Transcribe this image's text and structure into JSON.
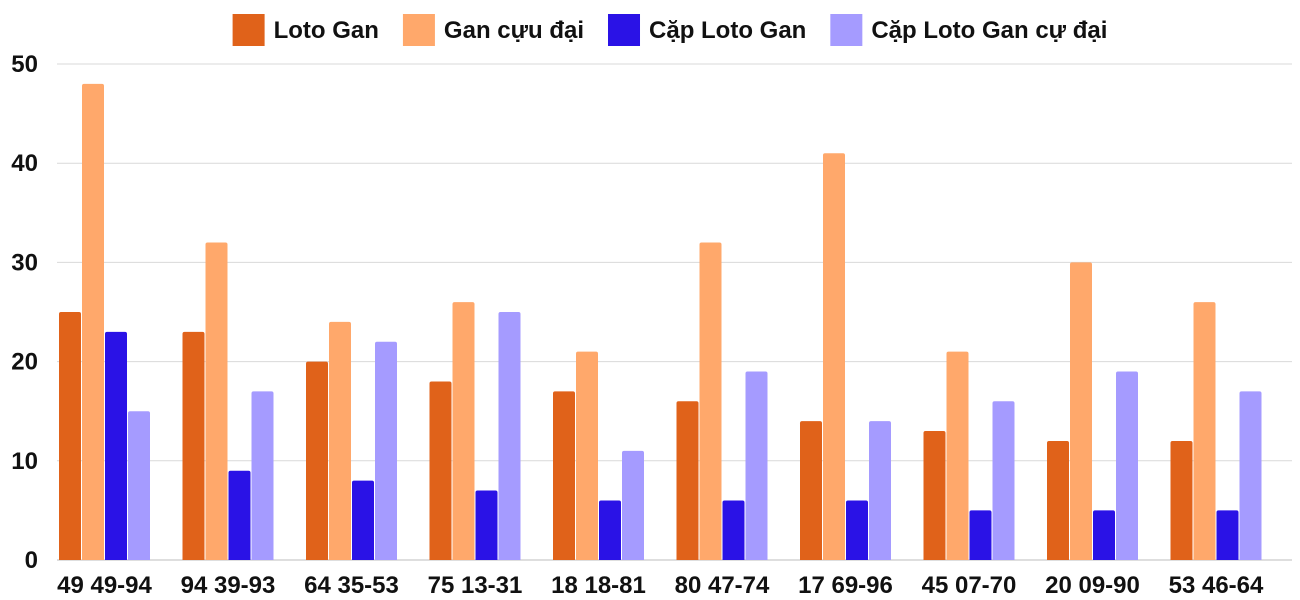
{
  "chart_data": {
    "type": "bar",
    "title": "",
    "xlabel": "",
    "ylabel": "",
    "ylim": [
      0,
      50
    ],
    "yticks": [
      0,
      10,
      20,
      30,
      40,
      50
    ],
    "grid": true,
    "legend_position": "top-center",
    "categories": [
      "49 49-94",
      "94 39-93",
      "64 35-53",
      "75 13-31",
      "18 18-81",
      "80 47-74",
      "17 69-96",
      "45 07-70",
      "20 09-90",
      "53 46-64"
    ],
    "series": [
      {
        "name": "Loto Gan",
        "color": "#e0621a",
        "values": [
          25,
          23,
          20,
          18,
          17,
          16,
          14,
          13,
          12,
          12
        ]
      },
      {
        "name": "Gan cựu đại",
        "color": "#ffa86b",
        "values": [
          48,
          32,
          24,
          26,
          21,
          32,
          41,
          21,
          30,
          26
        ]
      },
      {
        "name": "Cặp Loto Gan",
        "color": "#2a12e6",
        "values": [
          23,
          9,
          8,
          7,
          6,
          6,
          6,
          5,
          5,
          5
        ]
      },
      {
        "name": "Cặp Loto Gan cự đại",
        "color": "#a59bff",
        "values": [
          15,
          17,
          22,
          25,
          11,
          19,
          14,
          16,
          19,
          17
        ]
      }
    ]
  }
}
